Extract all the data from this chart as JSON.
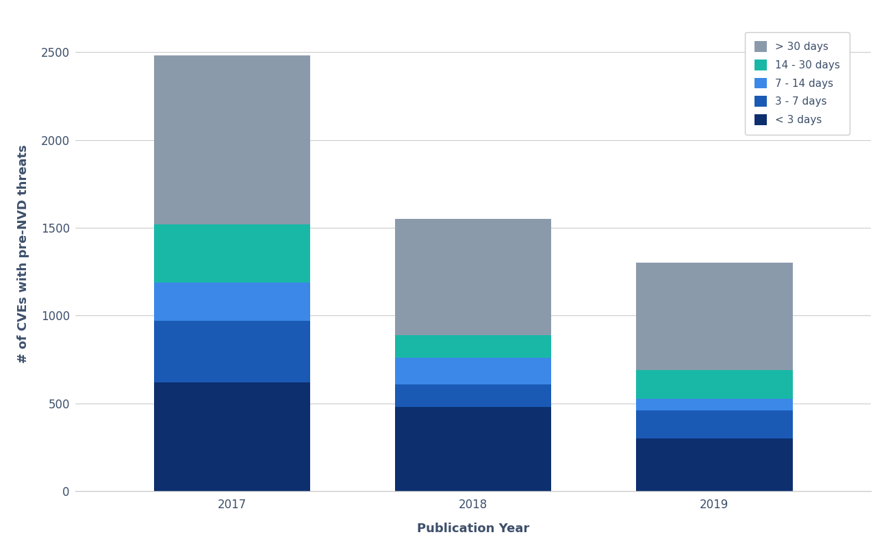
{
  "years": [
    "2017",
    "2018",
    "2019"
  ],
  "segments": {
    "lt_3_days": [
      620,
      480,
      300
    ],
    "3_7_days": [
      350,
      130,
      160
    ],
    "7_14_days": [
      220,
      150,
      65
    ],
    "14_30_days": [
      330,
      130,
      165
    ],
    "gt_30_days": [
      960,
      660,
      610
    ]
  },
  "colors": {
    "lt_3_days": "#0d2f6e",
    "3_7_days": "#1a5ab5",
    "7_14_days": "#3b88e8",
    "14_30_days": "#19b8a6",
    "gt_30_days": "#8b9aab"
  },
  "legend_labels": [
    "> 30 days",
    "14 - 30 days",
    "7 - 14 days",
    "3 - 7 days",
    "< 3 days"
  ],
  "legend_colors": [
    "#8b9aab",
    "#19b8a6",
    "#3b88e8",
    "#1a5ab5",
    "#0d2f6e"
  ],
  "xlabel": "Publication Year",
  "ylabel": "# of CVEs with pre-NVD threats",
  "ylim": [
    0,
    2700
  ],
  "yticks": [
    0,
    500,
    1000,
    1500,
    2000,
    2500
  ],
  "bar_width": 0.65,
  "background_color": "#ffffff",
  "spine_color": "#cccccc",
  "tick_color": "#3d4f6b",
  "label_fontsize": 13,
  "tick_fontsize": 12
}
